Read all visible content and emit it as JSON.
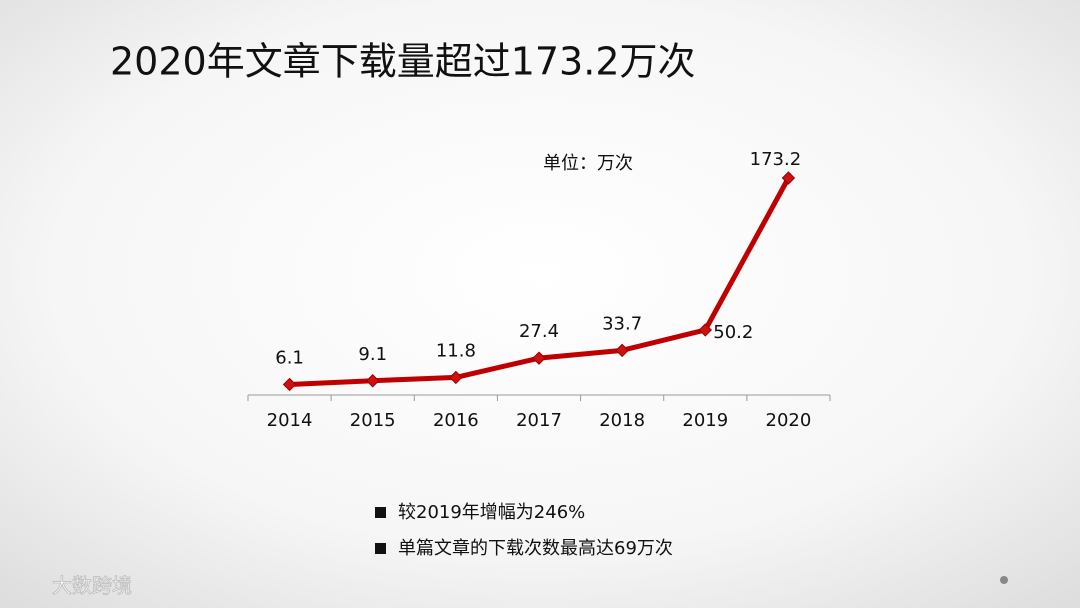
{
  "chart_data": {
    "type": "line",
    "title": "2020年文章下载量超过173.2万次",
    "annotation": "单位：万次",
    "categories": [
      "2014",
      "2015",
      "2016",
      "2017",
      "2018",
      "2019",
      "2020"
    ],
    "values": [
      6.1,
      9.1,
      11.8,
      27.4,
      33.7,
      50.2,
      173.2
    ],
    "color": "#c00000"
  },
  "notes": [
    "较2019年增幅为246%",
    "单篇文章的下载次数最高达69万次"
  ],
  "watermark": "大数跨境"
}
